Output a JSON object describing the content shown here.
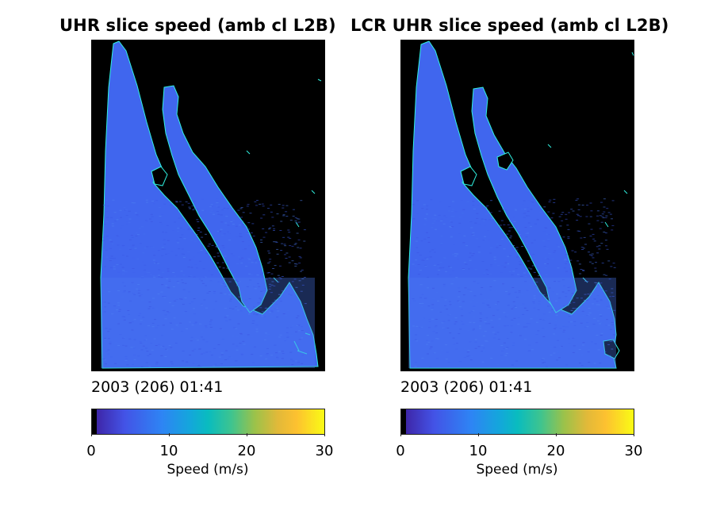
{
  "chart_data": [
    {
      "type": "heatmap",
      "title": "UHR slice speed (amb cl L2B)",
      "timestamp": "2003 (206) 01:41",
      "colorbar": {
        "label": "Speed (m/s)",
        "range": [
          0,
          30
        ],
        "ticks": [
          "0",
          "10",
          "20",
          "30"
        ],
        "colormap": "parula"
      },
      "dominant_speed_range": [
        5,
        9
      ]
    },
    {
      "type": "heatmap",
      "title": "LCR UHR slice speed (amb cl L2B)",
      "timestamp": "2003 (206) 01:41",
      "colorbar": {
        "label": "Speed (m/s)",
        "range": [
          0,
          30
        ],
        "ticks": [
          "0",
          "10",
          "20",
          "30"
        ],
        "colormap": "parula"
      },
      "dominant_speed_range": [
        5,
        9
      ]
    }
  ],
  "colors": {
    "background": "#000000",
    "ocean_base": "#3f63ef",
    "coast": "#2ff0e0"
  }
}
